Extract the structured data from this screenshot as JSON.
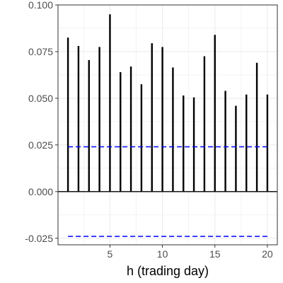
{
  "chart_data": {
    "type": "bar",
    "style": "vertical-lines",
    "xlabel": "h (trading day)",
    "ylabel": "",
    "x": [
      1,
      2,
      3,
      4,
      5,
      6,
      7,
      8,
      9,
      10,
      11,
      12,
      13,
      14,
      15,
      16,
      17,
      18,
      19,
      20
    ],
    "values": [
      0.0825,
      0.078,
      0.0705,
      0.0775,
      0.095,
      0.064,
      0.067,
      0.0575,
      0.0795,
      0.0775,
      0.0665,
      0.0515,
      0.0505,
      0.0725,
      0.084,
      0.054,
      0.046,
      0.052,
      0.069,
      0.052
    ],
    "confidence_band": {
      "upper": 0.024,
      "lower": -0.024,
      "line_style": "dashed",
      "color": "#0000FF"
    },
    "xlim": [
      0.05,
      20.95
    ],
    "ylim": [
      -0.0285,
      0.1
    ],
    "x_ticks": [
      5,
      10,
      15,
      20
    ],
    "x_tick_labels": [
      "5",
      "10",
      "15",
      "20"
    ],
    "y_ticks": [
      -0.025,
      0,
      0.025,
      0.05,
      0.075,
      0.1
    ],
    "y_tick_labels": [
      "-0.025",
      "0.000",
      "0.025",
      "0.050",
      "0.075",
      "0.100"
    ],
    "grid": true,
    "theme": "bw",
    "colors": {
      "bars": "#000000",
      "band": "#0000FF",
      "grid": "#ebebeb",
      "panel_border": "#333333"
    }
  }
}
